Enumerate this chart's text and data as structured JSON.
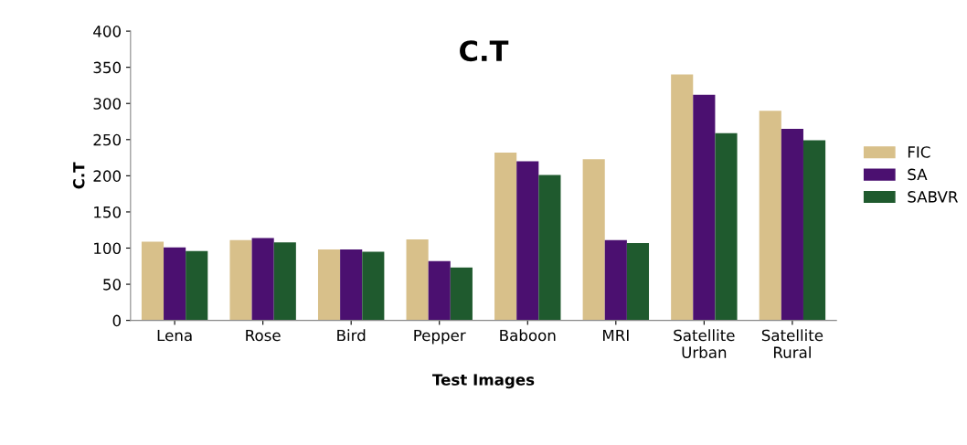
{
  "chart_data": {
    "type": "bar",
    "title": "C.T",
    "xlabel": "Test Images",
    "ylabel": "C.T",
    "categories": [
      "Lena",
      "Rose",
      "Bird",
      "Pepper",
      "Baboon",
      "MRI",
      "Satellite\nUrban",
      "Satellite\nRural"
    ],
    "series": [
      {
        "name": "FIC",
        "color": "#d8c08a",
        "values": [
          109,
          111,
          98,
          112,
          232,
          223,
          340,
          290
        ]
      },
      {
        "name": "SA",
        "color": "#4b1070",
        "values": [
          101,
          114,
          98,
          82,
          220,
          111,
          312,
          265
        ]
      },
      {
        "name": "SABVR",
        "color": "#1f5a2e",
        "values": [
          96,
          108,
          95,
          73,
          201,
          107,
          259,
          249
        ]
      }
    ],
    "ylim": [
      0,
      400
    ],
    "yticks": [
      0,
      50,
      100,
      150,
      200,
      250,
      300,
      350,
      400
    ],
    "grid": false,
    "legend": "right"
  }
}
